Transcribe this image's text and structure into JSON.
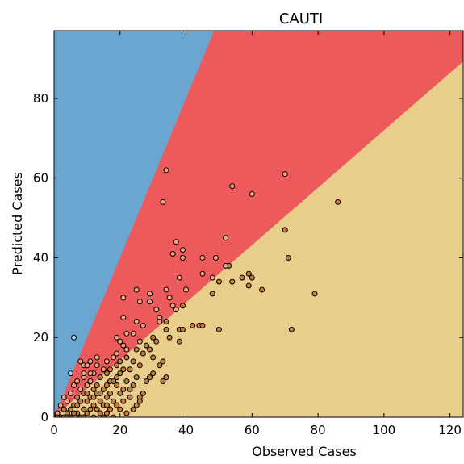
{
  "chart_data": {
    "type": "scatter",
    "title": "CAUTI",
    "xlabel": "Observed Cases",
    "ylabel": "Predicted Cases",
    "xlim": [
      0,
      124
    ],
    "ylim": [
      0,
      97
    ],
    "xticks": [
      0,
      20,
      40,
      60,
      80,
      100,
      120
    ],
    "yticks": [
      0,
      20,
      40,
      60,
      80
    ],
    "regions": [
      {
        "name": "upper",
        "color": "#6aa6cf",
        "boundary_slope": 2.0,
        "boundary_intercept": 0
      },
      {
        "name": "middle",
        "color": "#ec5a5c",
        "boundary_slope": 0.72,
        "boundary_intercept": 0
      },
      {
        "name": "lower",
        "color": "#e8cd8b"
      }
    ],
    "grid": false,
    "legend": "none",
    "point_colors": {
      "upper": "#a9d3e8",
      "middle": "#f2a07f",
      "lower": "#c27d45"
    },
    "points": [
      [
        6,
        20
      ],
      [
        5,
        11
      ],
      [
        34,
        62
      ],
      [
        33,
        54
      ],
      [
        70,
        61
      ],
      [
        54,
        58
      ],
      [
        60,
        56
      ],
      [
        86,
        54
      ],
      [
        70,
        47
      ],
      [
        52,
        45
      ],
      [
        37,
        44
      ],
      [
        39,
        42
      ],
      [
        36,
        41
      ],
      [
        39,
        40
      ],
      [
        45,
        40
      ],
      [
        49,
        40
      ],
      [
        71,
        40
      ],
      [
        53,
        38
      ],
      [
        52,
        38
      ],
      [
        45,
        36
      ],
      [
        59,
        36
      ],
      [
        57,
        35
      ],
      [
        60,
        35
      ],
      [
        38,
        35
      ],
      [
        48,
        35
      ],
      [
        50,
        34
      ],
      [
        54,
        34
      ],
      [
        59,
        33
      ],
      [
        63,
        32
      ],
      [
        40,
        32
      ],
      [
        34,
        32
      ],
      [
        25,
        32
      ],
      [
        29,
        31
      ],
      [
        48,
        31
      ],
      [
        79,
        31
      ],
      [
        21,
        30
      ],
      [
        35,
        30
      ],
      [
        29,
        29
      ],
      [
        26,
        29
      ],
      [
        36,
        28
      ],
      [
        39,
        28
      ],
      [
        37,
        27
      ],
      [
        31,
        27
      ],
      [
        32,
        25
      ],
      [
        34,
        24
      ],
      [
        32,
        24
      ],
      [
        25,
        24
      ],
      [
        42,
        23
      ],
      [
        44,
        23
      ],
      [
        45,
        23
      ],
      [
        34,
        22
      ],
      [
        38,
        22
      ],
      [
        39,
        22
      ],
      [
        50,
        22
      ],
      [
        72,
        22
      ],
      [
        24,
        21
      ],
      [
        22,
        21
      ],
      [
        35,
        20
      ],
      [
        19,
        20
      ],
      [
        31,
        19
      ],
      [
        20,
        19
      ],
      [
        38,
        19
      ],
      [
        26,
        19
      ],
      [
        21,
        18
      ],
      [
        28,
        18
      ],
      [
        25,
        17
      ],
      [
        29,
        17
      ],
      [
        22,
        17
      ],
      [
        27,
        16
      ],
      [
        30,
        15
      ],
      [
        22,
        15
      ],
      [
        18,
        15
      ],
      [
        13,
        15
      ],
      [
        33,
        14
      ],
      [
        24,
        14
      ],
      [
        20,
        14
      ],
      [
        16,
        14
      ],
      [
        8,
        14
      ],
      [
        11,
        14
      ],
      [
        13,
        13
      ],
      [
        19,
        13
      ],
      [
        26,
        13
      ],
      [
        32,
        13
      ],
      [
        9,
        13
      ],
      [
        10,
        13
      ],
      [
        15,
        12
      ],
      [
        17,
        12
      ],
      [
        21,
        12
      ],
      [
        23,
        12
      ],
      [
        16,
        11
      ],
      [
        20,
        11
      ],
      [
        12,
        11
      ],
      [
        30,
        11
      ],
      [
        34,
        10
      ],
      [
        19,
        10
      ],
      [
        14,
        10
      ],
      [
        9,
        10
      ],
      [
        25,
        10
      ],
      [
        17,
        9
      ],
      [
        11,
        9
      ],
      [
        22,
        9
      ],
      [
        28,
        9
      ],
      [
        33,
        9
      ],
      [
        7,
        9
      ],
      [
        13,
        8
      ],
      [
        19,
        8
      ],
      [
        24,
        8
      ],
      [
        6,
        8
      ],
      [
        10,
        8
      ],
      [
        15,
        7
      ],
      [
        21,
        7
      ],
      [
        8,
        7
      ],
      [
        12,
        7
      ],
      [
        17,
        6
      ],
      [
        27,
        6
      ],
      [
        5,
        6
      ],
      [
        9,
        6
      ],
      [
        13,
        6
      ],
      [
        20,
        6
      ],
      [
        3,
        5
      ],
      [
        7,
        5
      ],
      [
        11,
        5
      ],
      [
        16,
        5
      ],
      [
        23,
        5
      ],
      [
        26,
        5
      ],
      [
        14,
        4
      ],
      [
        18,
        4
      ],
      [
        4,
        4
      ],
      [
        8,
        4
      ],
      [
        10,
        4
      ],
      [
        21,
        4
      ],
      [
        2,
        3
      ],
      [
        6,
        3
      ],
      [
        12,
        3
      ],
      [
        15,
        3
      ],
      [
        25,
        3
      ],
      [
        19,
        3
      ],
      [
        3,
        2
      ],
      [
        5,
        2
      ],
      [
        9,
        2
      ],
      [
        11,
        2
      ],
      [
        13,
        2
      ],
      [
        17,
        2
      ],
      [
        20,
        2
      ],
      [
        1,
        1
      ],
      [
        4,
        1
      ],
      [
        7,
        1
      ],
      [
        10,
        1
      ],
      [
        14,
        1
      ],
      [
        16,
        1
      ],
      [
        22,
        1
      ],
      [
        0,
        0
      ],
      [
        2,
        0
      ],
      [
        5,
        0
      ],
      [
        8,
        0
      ],
      [
        12,
        0
      ],
      [
        15,
        0
      ],
      [
        18,
        0
      ],
      [
        6,
        1
      ],
      [
        3,
        0
      ],
      [
        24,
        2
      ],
      [
        26,
        4
      ],
      [
        14,
        6
      ],
      [
        18,
        9
      ],
      [
        11,
        11
      ],
      [
        9,
        11
      ],
      [
        16,
        8
      ],
      [
        12,
        5
      ],
      [
        10,
        6
      ],
      [
        7,
        3
      ],
      [
        4,
        0
      ],
      [
        1,
        0
      ],
      [
        9,
        0
      ],
      [
        16,
        3
      ],
      [
        23,
        7
      ],
      [
        29,
        10
      ],
      [
        19,
        16
      ],
      [
        30,
        20
      ],
      [
        27,
        23
      ],
      [
        21,
        25
      ]
    ]
  }
}
